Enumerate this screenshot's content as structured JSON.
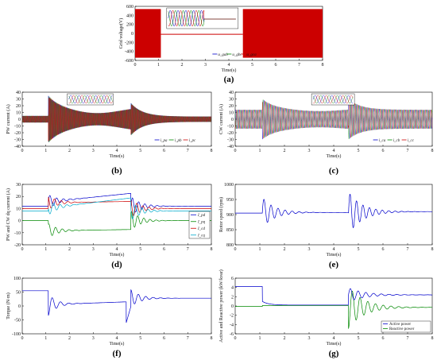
{
  "chart_data": [
    {
      "id": "a",
      "type": "line",
      "caption": "(a)",
      "ylabel": "Grid voltage(V)",
      "xlabel": "Time(s)",
      "xlim": [
        0,
        8
      ],
      "ylim": [
        -600,
        600
      ],
      "xticks": [
        0,
        1,
        2,
        3,
        4,
        5,
        6,
        7,
        8
      ],
      "yticks": [
        600,
        400,
        200,
        0,
        -200,
        -400,
        -600
      ],
      "series": [
        {
          "name": "u_gab",
          "color": "#0000cc"
        },
        {
          "name": "u_gbc",
          "color": "#008800"
        },
        {
          "name": "u_gca",
          "color": "#cc0000"
        }
      ],
      "envelope": {
        "normal_amplitude": 540,
        "dip_start": 1.1,
        "dip_end": 4.6,
        "dip_level": -20
      }
    },
    {
      "id": "b",
      "type": "line",
      "caption": "(b)",
      "ylabel": "PW current (A)",
      "xlabel": "Time(s)",
      "xlim": [
        0,
        8
      ],
      "ylim": [
        -40,
        40
      ],
      "xticks": [
        0,
        1,
        2,
        3,
        4,
        5,
        6,
        7,
        8
      ],
      "yticks": [
        40,
        30,
        20,
        10,
        0,
        -10,
        -20,
        -30,
        -40
      ],
      "series": [
        {
          "name": "i_pa",
          "color": "#0000cc"
        },
        {
          "name": "i_pb",
          "color": "#008800"
        },
        {
          "name": "i_pc",
          "color": "#cc0000"
        }
      ]
    },
    {
      "id": "c",
      "type": "line",
      "caption": "(c)",
      "ylabel": "CW current (A)",
      "xlabel": "Time(s)",
      "xlim": [
        0,
        8
      ],
      "ylim": [
        -40,
        40
      ],
      "xticks": [
        0,
        1,
        2,
        3,
        4,
        5,
        6,
        7,
        8
      ],
      "yticks": [
        40,
        30,
        20,
        10,
        0,
        -10,
        -20,
        -30,
        -40
      ],
      "series": [
        {
          "name": "i_ca",
          "color": "#0000cc"
        },
        {
          "name": "i_cb",
          "color": "#008800"
        },
        {
          "name": "i_cc",
          "color": "#cc0000"
        }
      ]
    },
    {
      "id": "d",
      "type": "line",
      "caption": "(d)",
      "ylabel": "PW and CW dq current (A)",
      "xlabel": "Time(s)",
      "xlim": [
        0,
        8
      ],
      "ylim": [
        -20,
        30
      ],
      "xticks": [
        0,
        1,
        2,
        3,
        4,
        5,
        6,
        7,
        8
      ],
      "yticks": [
        30,
        20,
        10,
        0,
        -10,
        -20
      ],
      "series": [
        {
          "name": "I_pd",
          "color": "#0000cc"
        },
        {
          "name": "I_pq",
          "color": "#008800"
        },
        {
          "name": "I_cd",
          "color": "#cc0000"
        },
        {
          "name": "I_cq",
          "color": "#00aacc"
        }
      ]
    },
    {
      "id": "e",
      "type": "line",
      "caption": "(e)",
      "ylabel": "Rotor speed (rpm)",
      "xlabel": "Time(s)",
      "xlim": [
        0,
        8
      ],
      "ylim": [
        800,
        1000
      ],
      "xticks": [
        0,
        1,
        2,
        3,
        4,
        5,
        6,
        7,
        8
      ],
      "yticks": [
        1000,
        950,
        900,
        850,
        800
      ],
      "series": [
        {
          "name": "speed",
          "color": "#0000cc",
          "base": 905
        }
      ]
    },
    {
      "id": "f",
      "type": "line",
      "caption": "(f)",
      "ylabel": "Torque (N·m)",
      "xlabel": "Time(s)",
      "xlim": [
        0,
        8
      ],
      "ylim": [
        -100,
        100
      ],
      "xticks": [
        0,
        1,
        2,
        3,
        4,
        5,
        6,
        7,
        8
      ],
      "yticks": [
        100,
        50,
        0,
        -50,
        -100
      ],
      "series": [
        {
          "name": "torque",
          "color": "#0000cc",
          "base": 55
        }
      ]
    },
    {
      "id": "g",
      "type": "line",
      "caption": "(g)",
      "ylabel": "Active and Reactive power (kW/kvar)",
      "xlabel": "Time(s)",
      "xlim": [
        0,
        8
      ],
      "ylim": [
        -6,
        6
      ],
      "xticks": [
        0,
        1,
        2,
        3,
        4,
        5,
        6,
        7,
        8
      ],
      "yticks": [
        6,
        4,
        2,
        0,
        -2,
        -4,
        -6
      ],
      "series": [
        {
          "name": "Active power",
          "color": "#0000cc"
        },
        {
          "name": "Reactive power",
          "color": "#008800"
        }
      ]
    }
  ]
}
